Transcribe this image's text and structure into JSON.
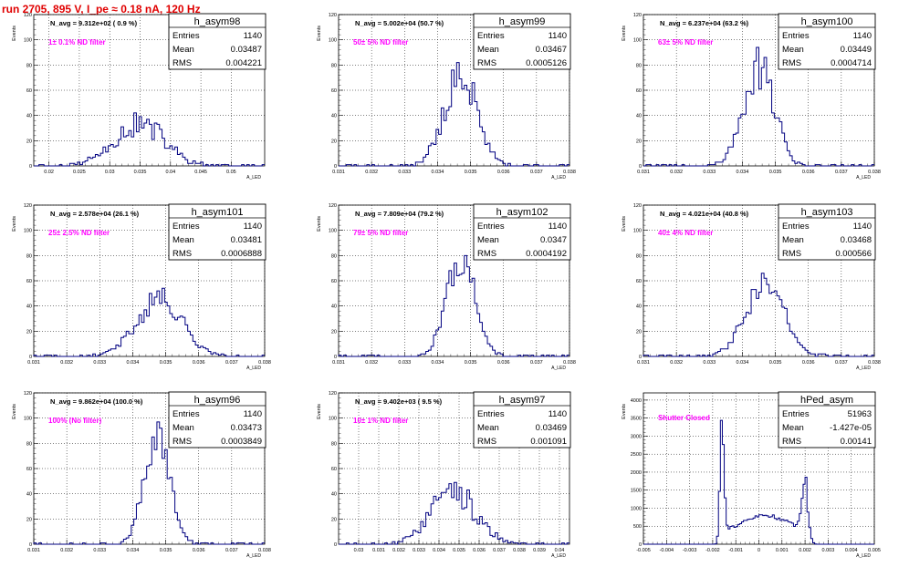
{
  "page": {
    "title": "run 2705,   895 V, I_pe ≈ 0.18 nA, 120 Hz"
  },
  "chart_data": [
    {
      "type": "histogram",
      "name": "h_asym98",
      "navg": "N_avg = 9.312e+02 ( 0.9 %)",
      "filter": "1± 0.1% ND filter",
      "stats": {
        "entries": "1140",
        "mean": "0.03487",
        "rms": "0.004221"
      },
      "xlim": [
        0.0175,
        0.0555
      ],
      "ylim": [
        0,
        120
      ],
      "xticks": [
        0.02,
        0.025,
        0.03,
        0.035,
        0.04,
        0.045,
        0.05
      ],
      "xtick_labels": [
        "0.02",
        "0.025",
        "0.03",
        "0.035",
        "0.04",
        "0.045",
        "0.05"
      ],
      "yticks": [
        0,
        20,
        40,
        60,
        80,
        100,
        120
      ],
      "ylabel": "Events",
      "xlabel": "A_LED",
      "dist": {
        "kind": "noisy",
        "mean": 0.0348,
        "sd": 0.0042,
        "peak": 33,
        "noise": 0.35,
        "seed": 11
      }
    },
    {
      "type": "histogram",
      "name": "h_asym99",
      "navg": "N_avg = 5.002e+04 (50.7 %)",
      "filter": "50± 5% ND filter",
      "stats": {
        "entries": "1140",
        "mean": "0.03467",
        "rms": "0.0005126"
      },
      "xlim": [
        0.031,
        0.038
      ],
      "ylim": [
        0,
        120
      ],
      "xticks": [
        0.031,
        0.032,
        0.033,
        0.034,
        0.035,
        0.036,
        0.037,
        0.038
      ],
      "xtick_labels": [
        "0.031",
        "0.032",
        "0.033",
        "0.034",
        "0.035",
        "0.036",
        "0.037",
        "0.038"
      ],
      "yticks": [
        0,
        20,
        40,
        60,
        80,
        100,
        120
      ],
      "ylabel": "Events",
      "xlabel": "A_LED",
      "dist": {
        "kind": "gauss",
        "mean": 0.0347,
        "sd": 0.00051,
        "peak": 70,
        "noise": 0.25,
        "seed": 21
      }
    },
    {
      "type": "histogram",
      "name": "h_asym100",
      "navg": "N_avg = 6.237e+04 (63.2 %)",
      "filter": "63± 5% ND filter",
      "stats": {
        "entries": "1140",
        "mean": "0.03449",
        "rms": "0.0004714"
      },
      "xlim": [
        0.031,
        0.038
      ],
      "ylim": [
        0,
        120
      ],
      "xticks": [
        0.031,
        0.032,
        0.033,
        0.034,
        0.035,
        0.036,
        0.037,
        0.038
      ],
      "xtick_labels": [
        "0.031",
        "0.032",
        "0.033",
        "0.034",
        "0.035",
        "0.036",
        "0.037",
        "0.038"
      ],
      "yticks": [
        0,
        20,
        40,
        60,
        80,
        100,
        120
      ],
      "ylabel": "Events",
      "xlabel": "A_LED",
      "dist": {
        "kind": "gauss",
        "mean": 0.0345,
        "sd": 0.00047,
        "peak": 76,
        "noise": 0.25,
        "seed": 31
      }
    },
    {
      "type": "histogram",
      "name": "h_asym101",
      "navg": "N_avg = 2.578e+04 (26.1 %)",
      "filter": "25± 2.5% ND filter",
      "stats": {
        "entries": "1140",
        "mean": "0.03481",
        "rms": "0.0006888"
      },
      "xlim": [
        0.031,
        0.038
      ],
      "ylim": [
        0,
        120
      ],
      "xticks": [
        0.031,
        0.032,
        0.033,
        0.034,
        0.035,
        0.036,
        0.037,
        0.038
      ],
      "xtick_labels": [
        "0.031",
        "0.032",
        "0.033",
        "0.034",
        "0.035",
        "0.036",
        "0.037",
        "0.038"
      ],
      "yticks": [
        0,
        20,
        40,
        60,
        80,
        100,
        120
      ],
      "ylabel": "Events",
      "xlabel": "A_LED",
      "dist": {
        "kind": "gauss",
        "mean": 0.0348,
        "sd": 0.00069,
        "peak": 46,
        "noise": 0.22,
        "seed": 41
      }
    },
    {
      "type": "histogram",
      "name": "h_asym102",
      "navg": "N_avg = 7.809e+04 (79.2 %)",
      "filter": "79± 5% ND filter",
      "stats": {
        "entries": "1140",
        "mean": "0.0347",
        "rms": "0.0004192"
      },
      "xlim": [
        0.031,
        0.038
      ],
      "ylim": [
        0,
        120
      ],
      "xticks": [
        0.031,
        0.032,
        0.033,
        0.034,
        0.035,
        0.036,
        0.037,
        0.038
      ],
      "xtick_labels": [
        "0.031",
        "0.032",
        "0.033",
        "0.034",
        "0.035",
        "0.036",
        "0.037",
        "0.038"
      ],
      "yticks": [
        0,
        20,
        40,
        60,
        80,
        100,
        120
      ],
      "ylabel": "Events",
      "xlabel": "A_LED",
      "dist": {
        "kind": "gauss",
        "mean": 0.0347,
        "sd": 0.00042,
        "peak": 78,
        "noise": 0.18,
        "seed": 51
      }
    },
    {
      "type": "histogram",
      "name": "h_asym103",
      "navg": "N_avg = 4.021e+04 (40.8 %)",
      "filter": "40± 4% ND filter",
      "stats": {
        "entries": "1140",
        "mean": "0.03468",
        "rms": "0.000566"
      },
      "xlim": [
        0.031,
        0.038
      ],
      "ylim": [
        0,
        120
      ],
      "xticks": [
        0.031,
        0.032,
        0.033,
        0.034,
        0.035,
        0.036,
        0.037,
        0.038
      ],
      "xtick_labels": [
        "0.031",
        "0.032",
        "0.033",
        "0.034",
        "0.035",
        "0.036",
        "0.037",
        "0.038"
      ],
      "yticks": [
        0,
        20,
        40,
        60,
        80,
        100,
        120
      ],
      "ylabel": "Events",
      "xlabel": "A_LED",
      "dist": {
        "kind": "gauss",
        "mean": 0.03468,
        "sd": 0.00057,
        "peak": 58,
        "noise": 0.25,
        "seed": 61
      }
    },
    {
      "type": "histogram",
      "name": "h_asym96",
      "navg": "N_avg = 9.862e+04 (100.0 %)",
      "filter": "100% (No filter)",
      "stats": {
        "entries": "1140",
        "mean": "0.03473",
        "rms": "0.0003849"
      },
      "xlim": [
        0.031,
        0.038
      ],
      "ylim": [
        0,
        120
      ],
      "xticks": [
        0.031,
        0.032,
        0.033,
        0.034,
        0.035,
        0.036,
        0.037,
        0.038
      ],
      "xtick_labels": [
        "0.031",
        "0.032",
        "0.033",
        "0.034",
        "0.035",
        "0.036",
        "0.037",
        "0.038"
      ],
      "yticks": [
        0,
        20,
        40,
        60,
        80,
        100,
        120
      ],
      "ylabel": "Events",
      "xlabel": "A_LED",
      "dist": {
        "kind": "gauss",
        "mean": 0.03473,
        "sd": 0.00038,
        "peak": 88,
        "noise": 0.2,
        "seed": 71
      }
    },
    {
      "type": "histogram",
      "name": "h_asym97",
      "navg": "N_avg = 9.402e+03 ( 9.5 %)",
      "filter": "10± 1% ND filter",
      "stats": {
        "entries": "1140",
        "mean": "0.03469",
        "rms": "0.001091"
      },
      "xlim": [
        0.029,
        0.0405
      ],
      "ylim": [
        0,
        120
      ],
      "xticks": [
        0.03,
        0.031,
        0.032,
        0.033,
        0.034,
        0.035,
        0.036,
        0.037,
        0.038,
        0.039,
        0.04
      ],
      "xtick_labels": [
        "0.03",
        "0.031",
        "0.032",
        "0.033",
        "0.034",
        "0.035",
        "0.036",
        "0.037",
        "0.038",
        "0.039",
        "0.04"
      ],
      "yticks": [
        0,
        20,
        40,
        60,
        80,
        100,
        120
      ],
      "ylabel": "Events",
      "xlabel": "A_LED",
      "dist": {
        "kind": "gauss",
        "mean": 0.0347,
        "sd": 0.00109,
        "peak": 42,
        "noise": 0.3,
        "seed": 81
      }
    },
    {
      "type": "histogram",
      "name": "hPed_asym",
      "navg": "",
      "filter": "Shutter Closed",
      "stats": {
        "entries": "51963",
        "mean": "-1.427e-05",
        "rms": "0.00141"
      },
      "xlim": [
        -0.005,
        0.005
      ],
      "ylim": [
        0,
        4200
      ],
      "xticks": [
        -0.005,
        -0.004,
        -0.003,
        -0.002,
        -0.001,
        0,
        0.001,
        0.002,
        0.003,
        0.004,
        0.005
      ],
      "xtick_labels": [
        "-0.005",
        "-0.004",
        "-0.003",
        "-0.002",
        "-0.001",
        "0",
        "0.001",
        "0.002",
        "0.003",
        "0.004",
        "0.005"
      ],
      "yticks": [
        0,
        500,
        1000,
        1500,
        2000,
        2500,
        3000,
        3500,
        4000
      ],
      "ylabel": "Events",
      "xlabel": "A_LED",
      "dist": {
        "kind": "ped",
        "seed": 91
      }
    }
  ]
}
